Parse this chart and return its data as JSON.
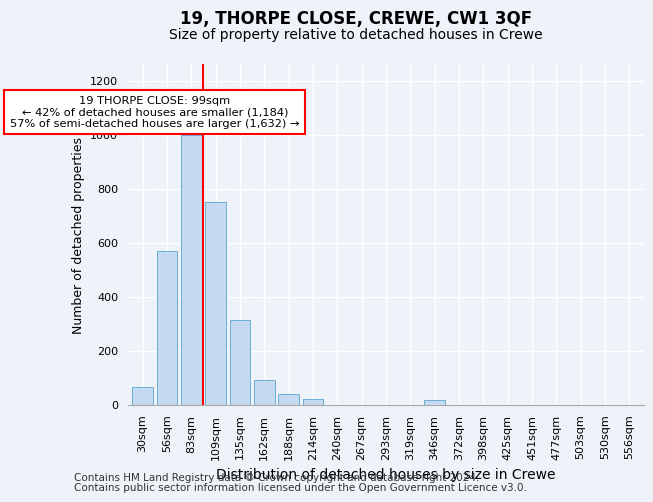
{
  "title": "19, THORPE CLOSE, CREWE, CW1 3QF",
  "subtitle": "Size of property relative to detached houses in Crewe",
  "xlabel": "Distribution of detached houses by size in Crewe",
  "ylabel": "Number of detached properties",
  "footer_line1": "Contains HM Land Registry data © Crown copyright and database right 2024.",
  "footer_line2": "Contains public sector information licensed under the Open Government Licence v3.0.",
  "categories": [
    "30sqm",
    "56sqm",
    "83sqm",
    "109sqm",
    "135sqm",
    "162sqm",
    "188sqm",
    "214sqm",
    "240sqm",
    "267sqm",
    "293sqm",
    "319sqm",
    "346sqm",
    "372sqm",
    "398sqm",
    "425sqm",
    "451sqm",
    "477sqm",
    "503sqm",
    "530sqm",
    "556sqm"
  ],
  "values": [
    65,
    570,
    1000,
    750,
    315,
    90,
    40,
    22,
    0,
    0,
    0,
    0,
    15,
    0,
    0,
    0,
    0,
    0,
    0,
    0,
    0
  ],
  "bar_color": "#c5d9f0",
  "bar_edge_color": "#6baed6",
  "vline_x_idx": 3,
  "vline_color": "red",
  "annotation_text": "19 THORPE CLOSE: 99sqm\n← 42% of detached houses are smaller (1,184)\n57% of semi-detached houses are larger (1,632) →",
  "annotation_box_color": "white",
  "annotation_box_edge_color": "red",
  "ylim": [
    0,
    1260
  ],
  "yticks": [
    0,
    200,
    400,
    600,
    800,
    1000,
    1200
  ],
  "bg_color": "#eef2f9",
  "plot_bg_color": "#eef2f9",
  "title_fontsize": 12,
  "subtitle_fontsize": 10,
  "xlabel_fontsize": 10,
  "ylabel_fontsize": 9,
  "tick_fontsize": 8,
  "footer_fontsize": 7.5
}
